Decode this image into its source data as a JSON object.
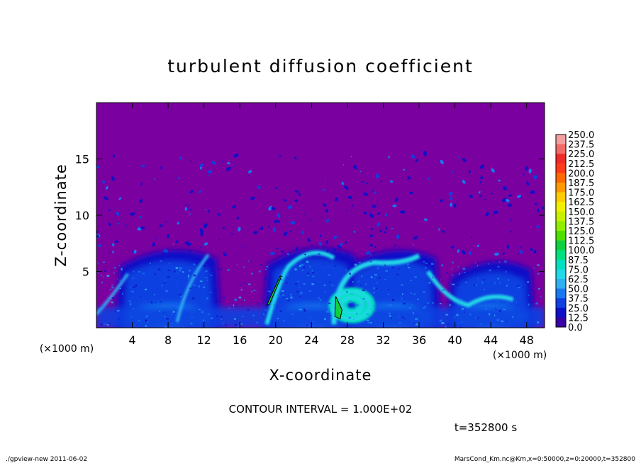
{
  "chart_data": {
    "type": "heatmap",
    "title": "turbulent diffusion coefficient",
    "xlabel": "X-coordinate",
    "ylabel": "Z-coordinate",
    "x_unit_label": "(×1000 m)",
    "y_unit_label": "(×1000 m)",
    "xlim": [
      0,
      50
    ],
    "ylim": [
      0,
      20
    ],
    "x_ticks": [
      4,
      8,
      12,
      16,
      20,
      24,
      28,
      32,
      36,
      40,
      44,
      48
    ],
    "y_ticks": [
      5,
      10,
      15
    ],
    "contour_interval_text": "CONTOUR INTERVAL = 1.000E+02",
    "time_text": "t=352800 s",
    "colorbar": {
      "levels": [
        "250.0",
        "237.5",
        "225.0",
        "212.5",
        "200.0",
        "187.5",
        "175.0",
        "162.5",
        "150.0",
        "137.5",
        "125.0",
        "112.5",
        "100.0",
        "87.5",
        "75.0",
        "62.5",
        "50.0",
        "37.5",
        "25.0",
        "12.5",
        "0.0"
      ],
      "colors": [
        "#f4a0a0",
        "#f26a6a",
        "#ee2a2a",
        "#ff3a1a",
        "#ff6a00",
        "#ff9a00",
        "#ffcc00",
        "#f0f000",
        "#c8f000",
        "#90ee00",
        "#50e000",
        "#10d040",
        "#00e080",
        "#00e0c0",
        "#20d8e8",
        "#30b0f0",
        "#1878f0",
        "#1040e0",
        "#1010c8",
        "#3a00a8"
      ],
      "background_color": "#7a00a0"
    },
    "features": [
      {
        "kind": "plume",
        "x_center": 8,
        "x_halfwidth": 6,
        "top": 7.3
      },
      {
        "kind": "plume",
        "x_center": 24,
        "x_halfwidth": 5.5,
        "top": 7.5
      },
      {
        "kind": "plume",
        "x_center": 33,
        "x_halfwidth": 5.5,
        "top": 7.3
      },
      {
        "kind": "plume",
        "x_center": 44,
        "x_halfwidth": 5,
        "top": 6.3
      },
      {
        "kind": "vortex",
        "x_center": 28.5,
        "z_center": 2.0,
        "radius": 2.0
      },
      {
        "kind": "contour_100",
        "x": [
          20.5,
          19.0,
          19.3,
          20.6
        ],
        "z": [
          4.6,
          2.0,
          2.1,
          4.5
        ]
      },
      {
        "kind": "contour_100",
        "x": [
          26.7,
          26.6,
          27.2,
          27.4
        ],
        "z": [
          2.8,
          1.0,
          0.8,
          1.6
        ]
      }
    ],
    "footer_left": "./gpview-new   2011-06-02",
    "footer_right": "MarsCond_Km.nc@Km,x=0:50000,z=0:20000,t=352800"
  }
}
